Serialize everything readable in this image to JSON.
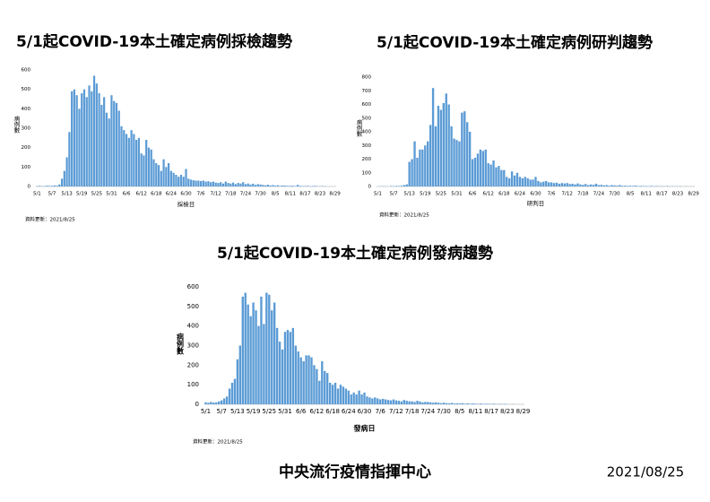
{
  "chart_data": [
    {
      "type": "bar",
      "title": "5/1起COVID-19本土確定病例採檢趨勢",
      "xlabel": "採檢日",
      "ylabel": "病例數",
      "note": "資料更新：2021/8/25",
      "color": "#5b9bd5",
      "categories": [
        "5/1",
        null,
        null,
        null,
        null,
        null,
        "5/7",
        null,
        null,
        null,
        null,
        null,
        "5/13",
        null,
        null,
        null,
        null,
        null,
        "5/19",
        null,
        null,
        null,
        null,
        null,
        "5/25",
        null,
        null,
        null,
        null,
        null,
        "5/31",
        null,
        null,
        null,
        null,
        null,
        "6/6",
        null,
        null,
        null,
        null,
        null,
        "6/12",
        null,
        null,
        null,
        null,
        null,
        "6/18",
        null,
        null,
        null,
        null,
        null,
        "6/24",
        null,
        null,
        null,
        null,
        null,
        "6/30",
        null,
        null,
        null,
        null,
        null,
        "7/6",
        null,
        null,
        null,
        null,
        null,
        "7/12",
        null,
        null,
        null,
        null,
        null,
        "7/18",
        null,
        null,
        null,
        null,
        null,
        "7/24",
        null,
        null,
        null,
        null,
        null,
        "7/30",
        null,
        null,
        null,
        null,
        null,
        "8/5",
        null,
        null,
        null,
        null,
        null,
        "8/11",
        null,
        null,
        null,
        null,
        null,
        "8/17",
        null,
        null,
        null,
        null,
        null,
        "8/23",
        null,
        null,
        null,
        null,
        null,
        "8/29"
      ],
      "values": [
        2,
        3,
        1,
        2,
        4,
        3,
        3,
        5,
        4,
        10,
        40,
        80,
        150,
        280,
        490,
        500,
        470,
        400,
        480,
        500,
        460,
        520,
        490,
        570,
        530,
        480,
        420,
        460,
        380,
        350,
        470,
        440,
        430,
        390,
        310,
        290,
        270,
        250,
        290,
        270,
        240,
        250,
        170,
        160,
        240,
        200,
        190,
        140,
        120,
        110,
        80,
        140,
        100,
        120,
        80,
        70,
        60,
        50,
        60,
        50,
        90,
        40,
        35,
        32,
        30,
        30,
        28,
        30,
        25,
        27,
        22,
        25,
        20,
        18,
        22,
        15,
        25,
        18,
        15,
        20,
        12,
        18,
        15,
        22,
        12,
        15,
        10,
        14,
        8,
        12,
        10,
        8,
        6,
        9,
        5,
        7,
        4,
        6,
        3,
        5,
        4,
        3,
        3,
        4,
        2,
        8,
        3,
        2,
        2,
        3,
        1,
        2,
        3,
        1,
        1,
        2,
        1,
        0,
        0,
        0,
        0
      ],
      "ylim": [
        0,
        600
      ],
      "yticks": [
        0,
        100,
        200,
        300,
        400,
        500,
        600
      ]
    },
    {
      "type": "bar",
      "title": "5/1起COVID-19本土確定病例研判趨勢",
      "xlabel": "研判日",
      "ylabel": "病例數",
      "note": "資料更新：2021/8/25",
      "color": "#5b9bd5",
      "categories": [
        "5/1",
        null,
        null,
        null,
        null,
        null,
        "5/7",
        null,
        null,
        null,
        null,
        null,
        "5/13",
        null,
        null,
        null,
        null,
        null,
        "5/19",
        null,
        null,
        null,
        null,
        null,
        "5/25",
        null,
        null,
        null,
        null,
        null,
        "5/31",
        null,
        null,
        null,
        null,
        null,
        "6/6",
        null,
        null,
        null,
        null,
        null,
        "6/12",
        null,
        null,
        null,
        null,
        null,
        "6/18",
        null,
        null,
        null,
        null,
        null,
        "6/24",
        null,
        null,
        null,
        null,
        null,
        "6/30",
        null,
        null,
        null,
        null,
        null,
        "7/6",
        null,
        null,
        null,
        null,
        null,
        "7/12",
        null,
        null,
        null,
        null,
        null,
        "7/18",
        null,
        null,
        null,
        null,
        null,
        "7/24",
        null,
        null,
        null,
        null,
        null,
        "7/30",
        null,
        null,
        null,
        null,
        null,
        "8/5",
        null,
        null,
        null,
        null,
        null,
        "8/11",
        null,
        null,
        null,
        null,
        null,
        "8/17",
        null,
        null,
        null,
        null,
        null,
        "8/23",
        null,
        null,
        null,
        null,
        null,
        "8/29"
      ],
      "values": [
        0,
        1,
        2,
        1,
        0,
        3,
        2,
        4,
        3,
        5,
        10,
        15,
        180,
        200,
        330,
        210,
        270,
        270,
        300,
        330,
        450,
        720,
        440,
        590,
        560,
        610,
        680,
        600,
        440,
        350,
        340,
        330,
        540,
        550,
        470,
        400,
        200,
        210,
        240,
        270,
        260,
        270,
        170,
        160,
        190,
        140,
        150,
        120,
        120,
        70,
        60,
        110,
        80,
        100,
        70,
        60,
        70,
        60,
        50,
        50,
        70,
        40,
        30,
        35,
        40,
        30,
        30,
        25,
        28,
        20,
        25,
        22,
        25,
        18,
        20,
        15,
        22,
        15,
        12,
        18,
        10,
        15,
        12,
        20,
        10,
        12,
        8,
        10,
        6,
        10,
        8,
        6,
        10,
        5,
        6,
        4,
        5,
        4,
        6,
        3,
        4,
        3,
        3,
        2,
        4,
        2,
        3,
        2,
        2,
        1,
        3,
        1,
        2,
        1,
        1,
        2,
        0,
        1,
        0,
        0,
        0
      ],
      "ylim": [
        0,
        800
      ],
      "yticks": [
        0,
        100,
        200,
        300,
        400,
        500,
        600,
        700,
        800
      ]
    },
    {
      "type": "bar",
      "title": "5/1起COVID-19本土確定病例發病趨勢",
      "xlabel": "發病日",
      "ylabel": "病例數",
      "note": "資料更新：2021/8/25",
      "color": "#5b9bd5",
      "categories": [
        "5/1",
        null,
        null,
        null,
        null,
        null,
        "5/7",
        null,
        null,
        null,
        null,
        null,
        "5/13",
        null,
        null,
        null,
        null,
        null,
        "5/19",
        null,
        null,
        null,
        null,
        null,
        "5/25",
        null,
        null,
        null,
        null,
        null,
        "5/31",
        null,
        null,
        null,
        null,
        null,
        "6/6",
        null,
        null,
        null,
        null,
        null,
        "6/12",
        null,
        null,
        null,
        null,
        null,
        "6/18",
        null,
        null,
        null,
        null,
        null,
        "6/24",
        null,
        null,
        null,
        null,
        null,
        "6/30",
        null,
        null,
        null,
        null,
        null,
        "7/6",
        null,
        null,
        null,
        null,
        null,
        "7/12",
        null,
        null,
        null,
        null,
        null,
        "7/18",
        null,
        null,
        null,
        null,
        null,
        "7/24",
        null,
        null,
        null,
        null,
        null,
        "7/30",
        null,
        null,
        null,
        null,
        null,
        "8/5",
        null,
        null,
        null,
        null,
        null,
        "8/11",
        null,
        null,
        null,
        null,
        null,
        "8/17",
        null,
        null,
        null,
        null,
        null,
        "8/23",
        null,
        null,
        null,
        null,
        null,
        "8/29"
      ],
      "values": [
        10,
        8,
        12,
        9,
        10,
        15,
        20,
        30,
        40,
        80,
        110,
        130,
        230,
        300,
        550,
        570,
        510,
        450,
        520,
        480,
        400,
        550,
        410,
        570,
        560,
        480,
        520,
        390,
        320,
        280,
        370,
        380,
        370,
        390,
        300,
        270,
        240,
        220,
        250,
        250,
        240,
        200,
        180,
        120,
        220,
        170,
        160,
        110,
        100,
        110,
        80,
        100,
        90,
        80,
        70,
        50,
        60,
        50,
        70,
        50,
        60,
        40,
        35,
        30,
        35,
        30,
        25,
        28,
        25,
        22,
        20,
        25,
        20,
        18,
        15,
        22,
        18,
        15,
        15,
        12,
        18,
        14,
        10,
        12,
        12,
        10,
        8,
        10,
        8,
        6,
        8,
        6,
        5,
        7,
        4,
        5,
        4,
        6,
        3,
        5,
        3,
        4,
        3,
        2,
        4,
        2,
        3,
        2,
        2,
        3,
        1,
        2,
        1,
        2,
        1,
        0,
        1,
        0,
        0,
        0,
        0
      ],
      "ylim": [
        0,
        600
      ],
      "yticks": [
        0,
        100,
        200,
        300,
        400,
        500,
        600
      ]
    }
  ],
  "footer": {
    "org": "中央流行疫情指揮中心",
    "date": "2021/08/25"
  }
}
